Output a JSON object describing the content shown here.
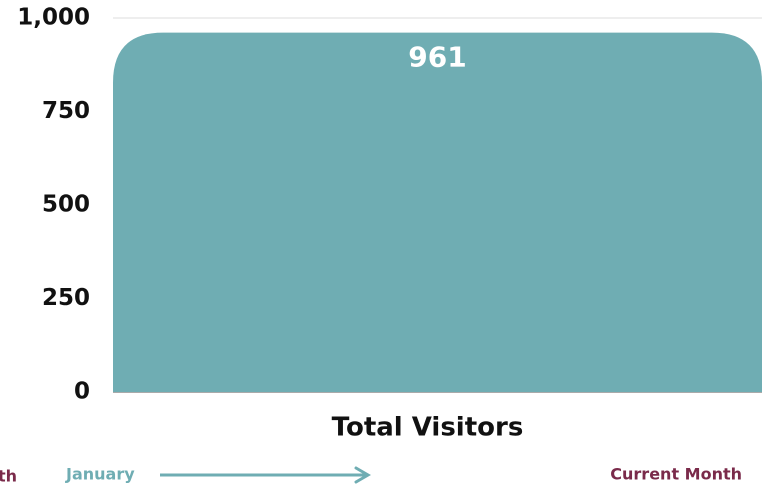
{
  "chart_data": {
    "type": "bar",
    "categories": [
      "Total Visitors"
    ],
    "values": [
      961
    ],
    "color": "#6fadb3",
    "ylim": [
      0,
      1000
    ],
    "yticks": [
      0,
      250,
      500,
      750,
      {
        "value": 1000,
        "label": "1,000"
      }
    ],
    "grid": true,
    "annotations": [
      "th",
      "January",
      "Current Month"
    ]
  }
}
